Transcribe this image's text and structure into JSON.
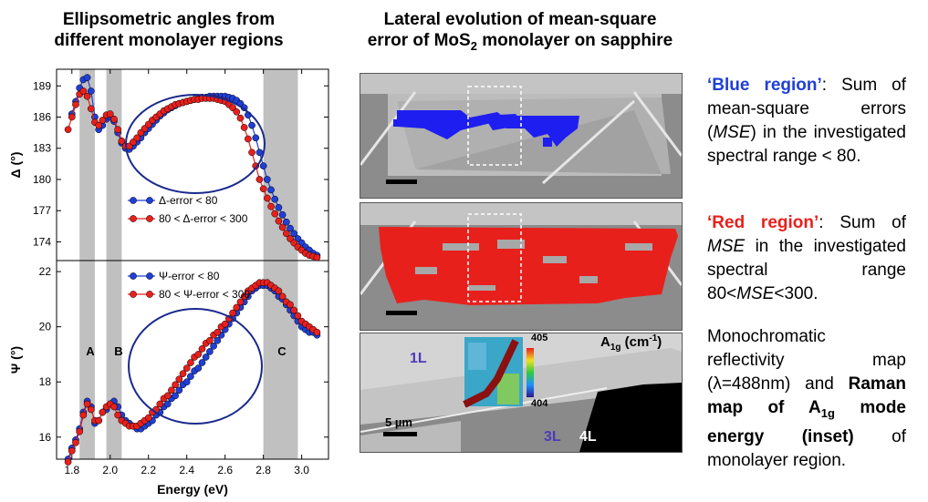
{
  "left_title": [
    "Ellipsometric angles from",
    "different monolayer regions"
  ],
  "mid_title": {
    "line1": "Lateral evolution of mean-square",
    "line2_pre": "error of MoS",
    "line2_sub": "2",
    "line2_post": " monolayer on sapphire"
  },
  "chart_data": [
    {
      "type": "scatter",
      "ylabel": "Δ (°)",
      "xlim": [
        1.72,
        3.14
      ],
      "ylim": [
        172.2,
        190.6
      ],
      "yticks": [
        "174",
        "177",
        "180",
        "183",
        "186",
        "189"
      ],
      "yticks_values": [
        174,
        177,
        180,
        183,
        186,
        189
      ],
      "legend": "middle-left",
      "series": [
        {
          "name": "Δ-error < 80",
          "color": "#1f3fd6",
          "x": [
            1.8,
            1.82,
            1.84,
            1.86,
            1.88,
            1.9,
            1.92,
            1.94,
            1.96,
            1.98,
            2.0,
            2.02,
            2.04,
            2.06,
            2.08,
            2.1,
            2.12,
            2.14,
            2.16,
            2.18,
            2.2,
            2.22,
            2.24,
            2.26,
            2.28,
            2.3,
            2.32,
            2.34,
            2.36,
            2.38,
            2.4,
            2.42,
            2.44,
            2.46,
            2.48,
            2.5,
            2.52,
            2.54,
            2.56,
            2.58,
            2.6,
            2.62,
            2.64,
            2.66,
            2.68,
            2.7,
            2.72,
            2.74,
            2.76,
            2.78,
            2.8,
            2.82,
            2.84,
            2.86,
            2.88,
            2.9,
            2.92,
            2.94,
            2.96,
            2.98,
            3.0,
            3.02,
            3.04,
            3.06,
            3.08
          ],
          "y": [
            186.3,
            187.5,
            188.8,
            189.6,
            189.8,
            188.5,
            186.0,
            184.8,
            185.2,
            185.8,
            186.0,
            185.6,
            184.5,
            183.5,
            183.0,
            182.9,
            183.2,
            183.6,
            184.0,
            184.5,
            184.9,
            185.3,
            185.7,
            186.1,
            186.4,
            186.7,
            186.9,
            187.1,
            187.3,
            187.4,
            187.5,
            187.6,
            187.7,
            187.8,
            187.9,
            187.9,
            188.0,
            188.0,
            188.0,
            188.0,
            188.0,
            187.9,
            187.8,
            187.6,
            187.3,
            186.9,
            186.2,
            185.2,
            184.0,
            182.6,
            181.3,
            180.0,
            179.0,
            178.1,
            177.3,
            176.6,
            175.9,
            175.3,
            174.8,
            174.3,
            173.9,
            173.5,
            173.2,
            172.9,
            172.7
          ]
        },
        {
          "name": "80 < Δ-error < 300",
          "color": "#e8201c",
          "x": [
            1.78,
            1.8,
            1.82,
            1.84,
            1.86,
            1.88,
            1.9,
            1.92,
            1.94,
            1.96,
            1.98,
            2.0,
            2.02,
            2.04,
            2.06,
            2.08,
            2.1,
            2.12,
            2.14,
            2.16,
            2.18,
            2.2,
            2.22,
            2.24,
            2.26,
            2.28,
            2.3,
            2.32,
            2.34,
            2.36,
            2.38,
            2.4,
            2.42,
            2.44,
            2.46,
            2.48,
            2.5,
            2.52,
            2.54,
            2.56,
            2.58,
            2.6,
            2.62,
            2.64,
            2.66,
            2.68,
            2.7,
            2.72,
            2.74,
            2.76,
            2.78,
            2.8,
            2.82,
            2.84,
            2.86,
            2.88,
            2.9,
            2.92,
            2.94,
            2.96,
            2.98,
            3.0,
            3.02,
            3.04,
            3.06,
            3.08
          ],
          "y": [
            184.8,
            186.0,
            187.2,
            188.2,
            188.5,
            188.0,
            186.8,
            185.5,
            185.2,
            185.7,
            186.2,
            186.3,
            185.8,
            184.8,
            183.7,
            183.2,
            183.2,
            183.6,
            184.0,
            184.5,
            184.9,
            185.3,
            185.7,
            186.0,
            186.3,
            186.6,
            186.8,
            187.0,
            187.2,
            187.3,
            187.4,
            187.5,
            187.6,
            187.7,
            187.7,
            187.8,
            187.8,
            187.8,
            187.8,
            187.7,
            187.6,
            187.5,
            187.2,
            186.9,
            186.5,
            185.9,
            185.0,
            183.9,
            182.6,
            181.3,
            180.0,
            179.1,
            178.2,
            177.4,
            176.7,
            176.0,
            175.4,
            174.8,
            174.3,
            173.9,
            173.5,
            173.2,
            172.9,
            172.7,
            172.6,
            172.5
          ]
        }
      ],
      "legend_entries": [
        "Δ-error < 80",
        "80 < Δ-error < 300"
      ]
    },
    {
      "type": "scatter",
      "xlabel": "Energy (eV)",
      "ylabel": "Ψ (°)",
      "xlim": [
        1.72,
        3.14
      ],
      "ylim": [
        15.2,
        22.4
      ],
      "xticks": [
        "1.8",
        "2.0",
        "2.2",
        "2.4",
        "2.6",
        "2.8",
        "3.0"
      ],
      "xticks_values": [
        1.8,
        2.0,
        2.2,
        2.4,
        2.6,
        2.8,
        3.0
      ],
      "yticks": [
        "16",
        "18",
        "20",
        "22"
      ],
      "yticks_values": [
        16,
        18,
        20,
        22
      ],
      "legend": "top-left",
      "band_labels": [
        "A",
        "B",
        "C"
      ],
      "series": [
        {
          "name": "Ψ-error < 80",
          "color": "#1f3fd6",
          "x": [
            1.78,
            1.8,
            1.82,
            1.84,
            1.86,
            1.88,
            1.9,
            1.92,
            1.94,
            1.96,
            1.98,
            2.0,
            2.02,
            2.04,
            2.06,
            2.08,
            2.1,
            2.12,
            2.14,
            2.16,
            2.18,
            2.2,
            2.22,
            2.24,
            2.26,
            2.28,
            2.3,
            2.32,
            2.34,
            2.36,
            2.38,
            2.4,
            2.42,
            2.44,
            2.46,
            2.48,
            2.5,
            2.52,
            2.54,
            2.56,
            2.58,
            2.6,
            2.62,
            2.64,
            2.66,
            2.68,
            2.7,
            2.72,
            2.74,
            2.76,
            2.78,
            2.8,
            2.82,
            2.84,
            2.86,
            2.88,
            2.9,
            2.92,
            2.94,
            2.96,
            2.98,
            3.0,
            3.02,
            3.04,
            3.06,
            3.08
          ],
          "y": [
            15.2,
            15.6,
            15.9,
            16.3,
            16.9,
            17.3,
            17.1,
            16.5,
            16.6,
            16.9,
            17.0,
            17.2,
            17.3,
            17.1,
            16.8,
            16.6,
            16.5,
            16.4,
            16.3,
            16.3,
            16.4,
            16.5,
            16.6,
            16.8,
            16.9,
            17.1,
            17.2,
            17.4,
            17.5,
            17.7,
            17.9,
            18.0,
            18.2,
            18.4,
            18.5,
            18.7,
            18.9,
            19.1,
            19.3,
            19.5,
            19.7,
            19.9,
            20.1,
            20.3,
            20.5,
            20.7,
            20.9,
            21.1,
            21.3,
            21.4,
            21.5,
            21.5,
            21.5,
            21.4,
            21.3,
            21.1,
            21.0,
            20.8,
            20.6,
            20.4,
            20.2,
            20.0,
            19.9,
            19.8,
            19.8,
            19.7
          ]
        },
        {
          "name": "80 < Ψ-error < 300",
          "color": "#e8201c",
          "x": [
            1.78,
            1.8,
            1.82,
            1.84,
            1.86,
            1.88,
            1.9,
            1.92,
            1.94,
            1.96,
            1.98,
            2.0,
            2.02,
            2.04,
            2.06,
            2.08,
            2.1,
            2.12,
            2.14,
            2.16,
            2.18,
            2.2,
            2.22,
            2.24,
            2.26,
            2.28,
            2.3,
            2.32,
            2.34,
            2.36,
            2.38,
            2.4,
            2.42,
            2.44,
            2.46,
            2.48,
            2.5,
            2.52,
            2.54,
            2.56,
            2.58,
            2.6,
            2.62,
            2.64,
            2.66,
            2.68,
            2.7,
            2.72,
            2.74,
            2.76,
            2.78,
            2.8,
            2.82,
            2.84,
            2.86,
            2.88,
            2.9,
            2.92,
            2.94,
            2.96,
            2.98,
            3.0,
            3.02,
            3.04,
            3.06,
            3.08
          ],
          "y": [
            15.1,
            15.5,
            15.8,
            16.2,
            16.8,
            17.2,
            17.0,
            16.6,
            16.6,
            16.9,
            17.1,
            17.2,
            17.1,
            16.8,
            16.6,
            16.5,
            16.4,
            16.4,
            16.4,
            16.5,
            16.6,
            16.7,
            16.9,
            17.0,
            17.2,
            17.4,
            17.5,
            17.7,
            17.9,
            18.1,
            18.3,
            18.5,
            18.7,
            18.9,
            19.0,
            19.2,
            19.4,
            19.5,
            19.7,
            19.8,
            20.0,
            20.1,
            20.3,
            20.5,
            20.7,
            20.9,
            21.1,
            21.3,
            21.4,
            21.5,
            21.6,
            21.6,
            21.6,
            21.5,
            21.4,
            21.3,
            21.1,
            20.9,
            20.8,
            20.6,
            20.4,
            20.2,
            20.1,
            20.0,
            19.9,
            19.8
          ]
        }
      ],
      "legend_entries": [
        "Ψ-error < 80",
        "80 < Ψ-error < 300"
      ]
    }
  ],
  "map": {
    "raman_label_pre": "A",
    "raman_label_sub": "1g",
    "raman_label_post": " (cm",
    "raman_label_sup": "-1",
    "raman_label_close": ")",
    "colorbar_max": "405",
    "colorbar_min": "404",
    "scale_bar": "5 µm",
    "label_1L": "1L",
    "label_3L": "3L",
    "label_4L": "4L"
  },
  "descriptions": {
    "blue_label": "‘Blue region’",
    "blue_text": ": Sum of mean-square errors (",
    "blue_mse": "MSE",
    "blue_text2": ") in the investigated spectral range < 80.",
    "red_label": "‘Red region’",
    "red_text": ": Sum of ",
    "red_mse": "MSE",
    "red_text2": " in the investigated spectral range 80<",
    "red_mse2": "MSE",
    "red_text3": "<300.",
    "mono_text": "Monochromatic reflectivity map (λ=488nm) and",
    "raman_bold_pre": "Raman map of A",
    "raman_bold_sub": "1g",
    "raman_bold_post": " mode energy (inset)",
    "mono_tail": " of monolayer region."
  }
}
